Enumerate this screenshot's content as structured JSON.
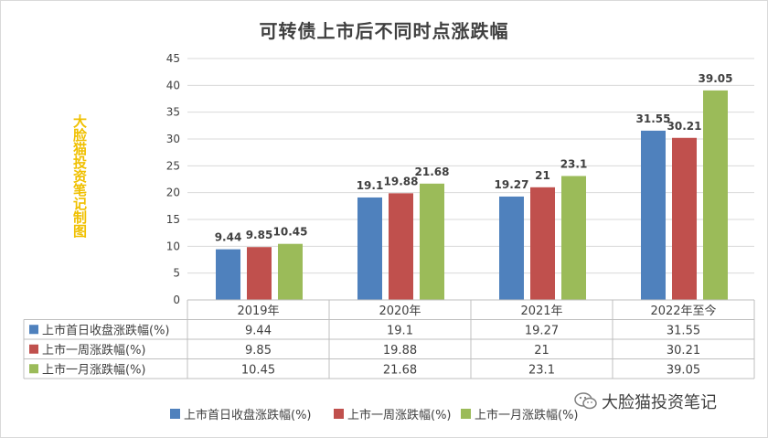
{
  "chart_data": {
    "type": "bar",
    "title": "可转债上市后不同时点涨跌幅",
    "side_note": "大脸猫投资笔记制图",
    "categories": [
      "2019年",
      "2020年",
      "2021年",
      "2022年至今"
    ],
    "series": [
      {
        "name": "上市首日收盘涨跌幅(%)",
        "values": [
          9.44,
          19.1,
          19.27,
          31.55
        ],
        "labels": [
          "9.44",
          "19.1",
          "19.27",
          "31.55"
        ],
        "color": "#4f81bd"
      },
      {
        "name": "上市一周涨跌幅(%)",
        "values": [
          9.85,
          19.88,
          21,
          30.21
        ],
        "labels": [
          "9.85",
          "19.88",
          "21",
          "30.21"
        ],
        "color": "#c0504d"
      },
      {
        "name": "上市一月涨跌幅(%)",
        "values": [
          10.45,
          21.68,
          23.1,
          39.05
        ],
        "labels": [
          "10.45",
          "21.68",
          "23.1",
          "39.05"
        ],
        "color": "#9bbb59"
      }
    ],
    "ylim": [
      0,
      45
    ],
    "yticks": [
      "0",
      "5",
      "10",
      "15",
      "20",
      "25",
      "30",
      "35",
      "40",
      "45"
    ],
    "grid": true,
    "legend_position": "bottom",
    "data_table": true
  },
  "watermark": {
    "text": "大脸猫投资笔记",
    "icon": "wechat-icon"
  }
}
